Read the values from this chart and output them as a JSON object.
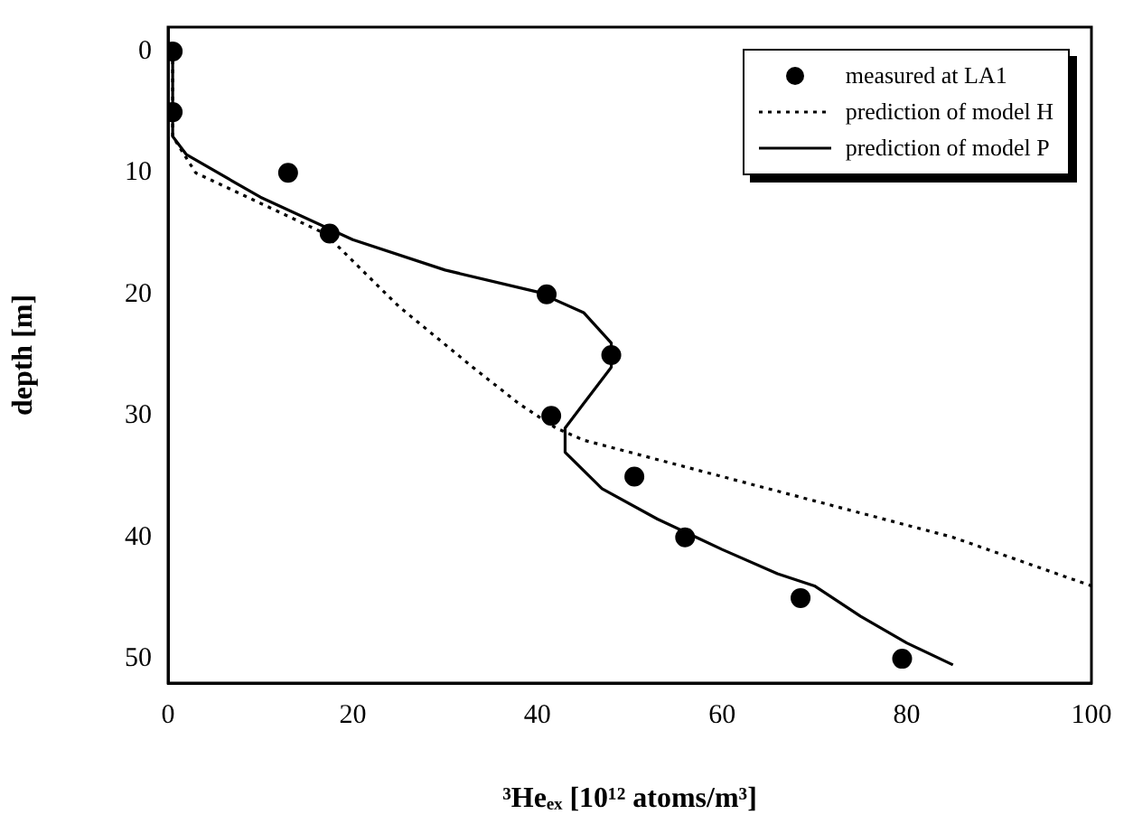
{
  "chart_data": {
    "type": "scatter",
    "xlabel": "³Heₑₓ [10¹² atoms/m³]",
    "ylabel": "depth [m]",
    "xlim": [
      0,
      100
    ],
    "xticks": [
      0,
      20,
      40,
      60,
      80,
      100
    ],
    "ylim": [
      52,
      -2
    ],
    "yticks": [
      0,
      10,
      20,
      30,
      40,
      50
    ],
    "grid": false,
    "legend": "top right",
    "series": [
      {
        "name": "measured at LA1",
        "marker": "circle",
        "color": "#000000",
        "x": [
          0.5,
          0.5,
          13,
          17.5,
          41,
          48,
          41.5,
          50.5,
          56,
          68.5,
          79.5
        ],
        "values": [
          0,
          5,
          10,
          15,
          20,
          25,
          30,
          35,
          40,
          45,
          50
        ]
      },
      {
        "name": "prediction of model H",
        "type": "line",
        "marker": "none",
        "line_style": "dotted",
        "color": "#000000",
        "x": [
          0.5,
          0.5,
          3,
          10,
          17,
          25,
          33,
          38,
          42,
          45,
          55,
          70,
          85,
          100
        ],
        "values": [
          0,
          7,
          10,
          12.5,
          15,
          21,
          26,
          29,
          31,
          32,
          34,
          37,
          40,
          44
        ]
      },
      {
        "name": "prediction of model P",
        "type": "line",
        "marker": "none",
        "line_style": "solid",
        "color": "#000000",
        "x": [
          0.5,
          0.5,
          2,
          10,
          20,
          30,
          40,
          45,
          48,
          48,
          45,
          43,
          43,
          47,
          53,
          60,
          66,
          70,
          75,
          80,
          85
        ],
        "values": [
          0,
          7,
          8.5,
          12,
          15.5,
          18,
          19.8,
          21.5,
          24,
          26,
          29,
          31,
          33,
          36,
          38.5,
          41,
          43,
          44,
          46.5,
          48.7,
          50.5
        ]
      }
    ]
  }
}
